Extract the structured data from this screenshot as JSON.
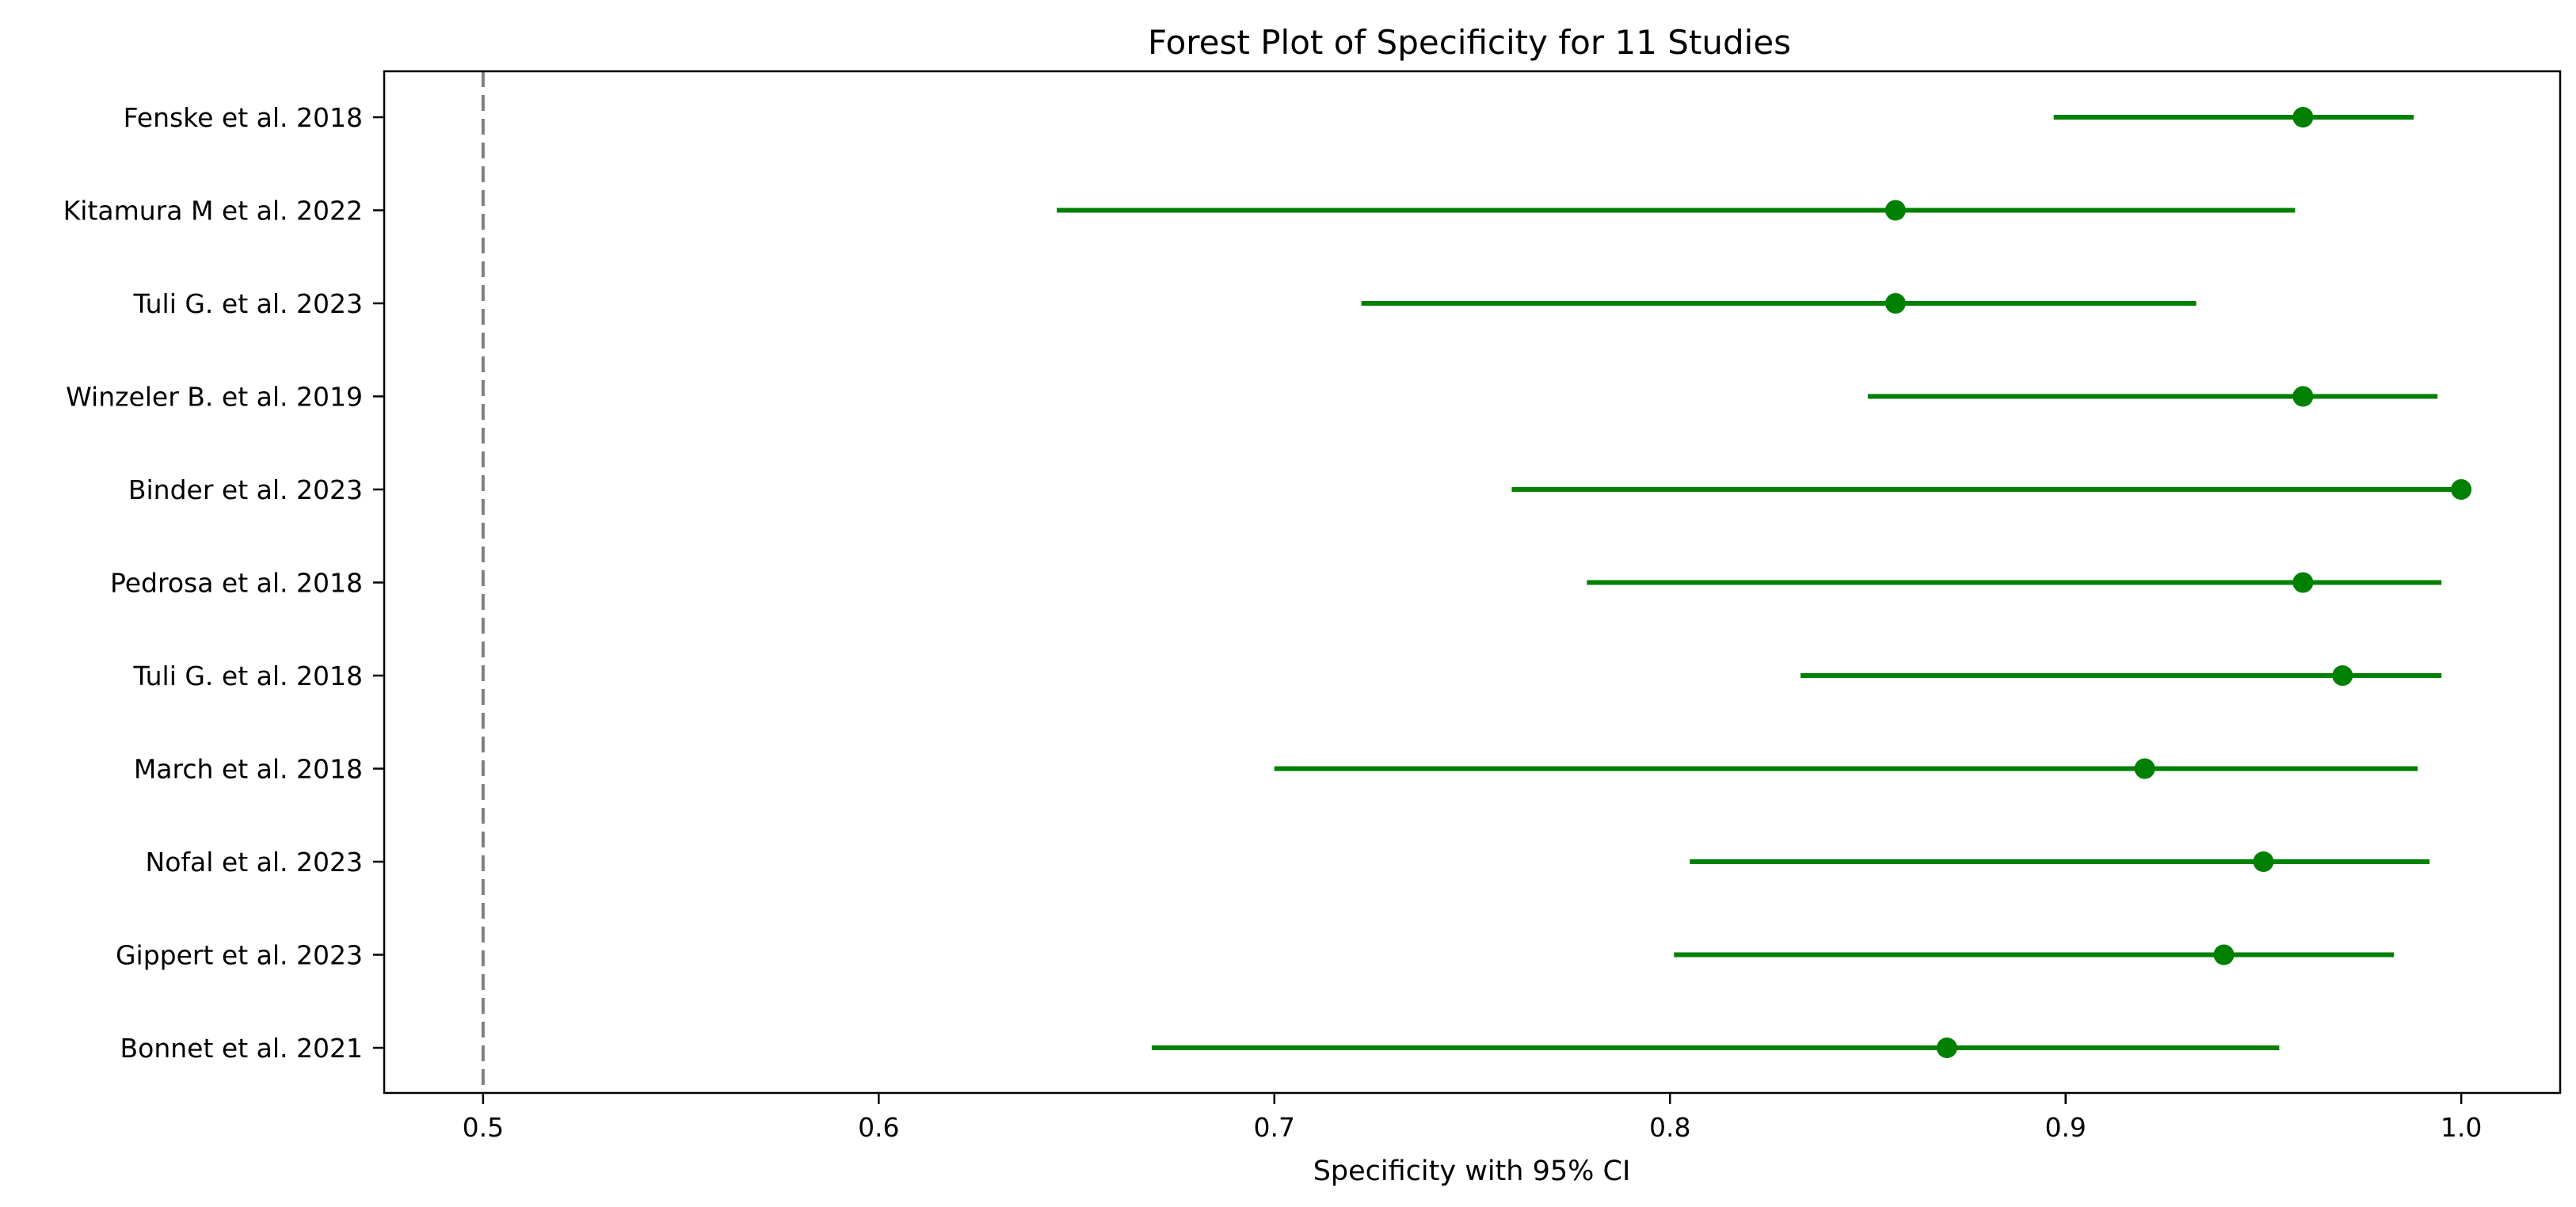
{
  "chart_data": {
    "type": "forest",
    "title": "Forest Plot of Specificity for 11 Studies",
    "xlabel": "Specificity with 95% CI",
    "ylabel": "",
    "xlim": [
      0.475,
      1.025
    ],
    "x_ticks": [
      "0.5",
      "0.6",
      "0.7",
      "0.8",
      "0.9",
      "1.0"
    ],
    "reference_line": 0.5,
    "grid": false,
    "colors": {
      "marker": "#008000",
      "ci_line": "#008000",
      "reference_line": "#808080",
      "axes": "#000000"
    },
    "studies": [
      {
        "label": "Fenske et al. 2018",
        "estimate": 0.96,
        "ci_low": 0.897,
        "ci_high": 0.988
      },
      {
        "label": "Kitamura M et al. 2022",
        "estimate": 0.857,
        "ci_low": 0.645,
        "ci_high": 0.958
      },
      {
        "label": "Tuli G. et al. 2023",
        "estimate": 0.857,
        "ci_low": 0.722,
        "ci_high": 0.933
      },
      {
        "label": "Winzeler B. et al. 2019",
        "estimate": 0.96,
        "ci_low": 0.85,
        "ci_high": 0.994
      },
      {
        "label": "Binder et al. 2023",
        "estimate": 1.0,
        "ci_low": 0.76,
        "ci_high": 1.0
      },
      {
        "label": "Pedrosa et al. 2018",
        "estimate": 0.96,
        "ci_low": 0.779,
        "ci_high": 0.995
      },
      {
        "label": "Tuli G. et al. 2018",
        "estimate": 0.97,
        "ci_low": 0.833,
        "ci_high": 0.995
      },
      {
        "label": "March et al. 2018",
        "estimate": 0.92,
        "ci_low": 0.7,
        "ci_high": 0.989
      },
      {
        "label": "Nofal et al. 2023",
        "estimate": 0.95,
        "ci_low": 0.805,
        "ci_high": 0.992
      },
      {
        "label": "Gippert et al. 2023",
        "estimate": 0.94,
        "ci_low": 0.801,
        "ci_high": 0.983
      },
      {
        "label": "Bonnet et al. 2021",
        "estimate": 0.87,
        "ci_low": 0.669,
        "ci_high": 0.954
      }
    ]
  }
}
